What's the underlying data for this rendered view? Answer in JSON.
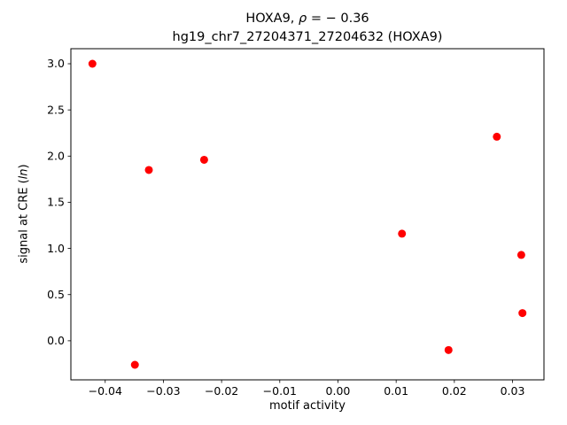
{
  "figure": {
    "background": "#ffffff"
  },
  "chart_data": {
    "type": "scatter",
    "title": {
      "prefix": "HOXA9, ",
      "rho": "ρ",
      "rest": " = − 0.36"
    },
    "subtitle": "hg19_chr7_27204371_27204632 (HOXA9)",
    "xlabel": "motif activity",
    "ylabel": {
      "prefix": "signal at CRE (",
      "italic": "ln",
      "suffix": ")"
    },
    "marker": {
      "color": "#ff0000",
      "radius": 4.5
    },
    "axes": {
      "xlim": [
        -0.0459,
        0.0354
      ],
      "ylim": [
        -0.423,
        3.163
      ],
      "xtick_values": [
        -0.04,
        -0.03,
        -0.02,
        -0.01,
        0,
        0.01,
        0.02,
        0.03
      ],
      "xtick_labels": [
        "−0.04",
        "−0.03",
        "−0.02",
        "−0.01",
        "0.00",
        "0.01",
        "0.02",
        "0.03"
      ],
      "ytick_values": [
        0,
        0.5,
        1,
        1.5,
        2,
        2.5,
        3
      ],
      "ytick_labels": [
        "0.0",
        "0.5",
        "1.0",
        "1.5",
        "2.0",
        "2.5",
        "3.0"
      ],
      "grid": false,
      "legend": "none"
    },
    "points": [
      {
        "x": -0.0422,
        "y": 3.0
      },
      {
        "x": -0.0349,
        "y": -0.26
      },
      {
        "x": -0.0325,
        "y": 1.85
      },
      {
        "x": -0.023,
        "y": 1.96
      },
      {
        "x": 0.011,
        "y": 1.16
      },
      {
        "x": 0.019,
        "y": -0.1
      },
      {
        "x": 0.0273,
        "y": 2.21
      },
      {
        "x": 0.0315,
        "y": 0.93
      },
      {
        "x": 0.0317,
        "y": 0.3
      }
    ]
  }
}
